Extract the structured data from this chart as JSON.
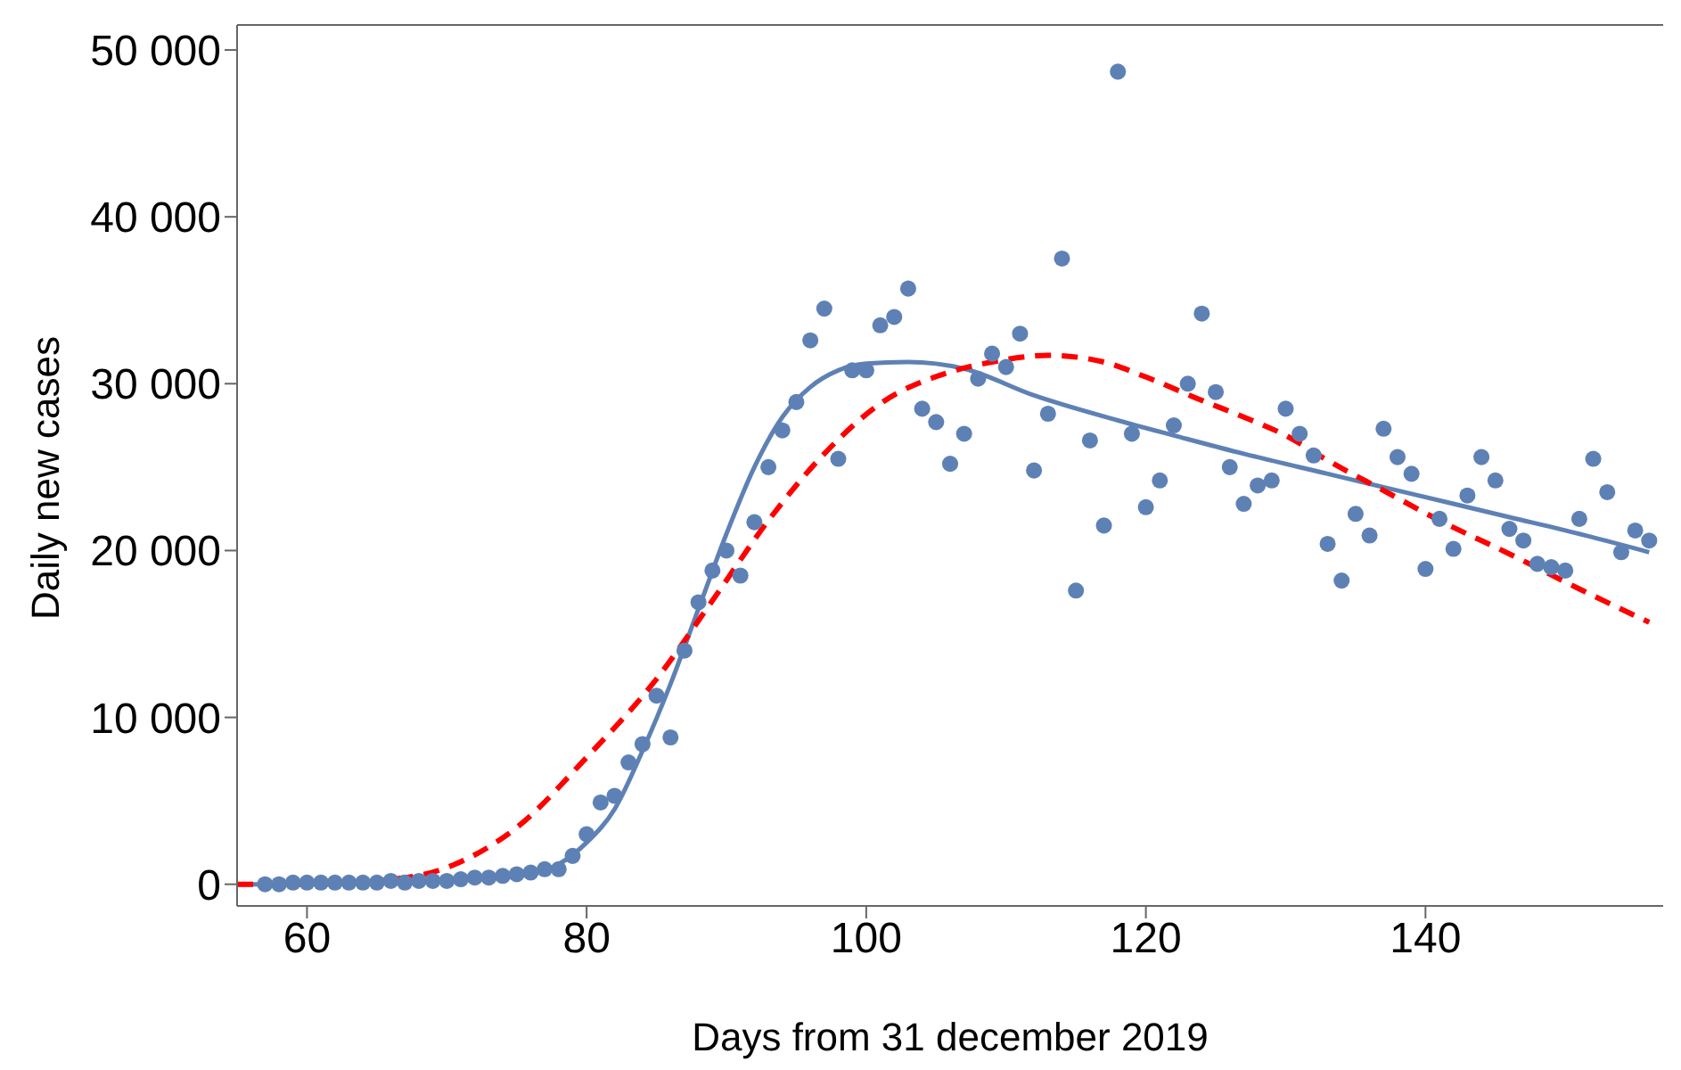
{
  "chart_data": {
    "type": "scatter",
    "xlabel": "Days from 31 december 2019",
    "ylabel": "Daily new cases",
    "xlim": [
      55,
      157
    ],
    "xticks": [
      60,
      80,
      100,
      120,
      140
    ],
    "ylim": [
      -1300,
      51500
    ],
    "yticks": [
      {
        "value": 0,
        "label": "0"
      },
      {
        "value": 10000,
        "label": "10 000"
      },
      {
        "value": 20000,
        "label": "20 000"
      },
      {
        "value": 30000,
        "label": "30 000"
      },
      {
        "value": 40000,
        "label": "40 000"
      },
      {
        "value": 50000,
        "label": "50 000"
      }
    ],
    "series": [
      {
        "marker": "circle",
        "color": "#5e81b5",
        "x": [
          57,
          58,
          59,
          60,
          61,
          62,
          63,
          64,
          65,
          66,
          67,
          68,
          69,
          70,
          71,
          72,
          73,
          74,
          75,
          76,
          77,
          78,
          79,
          80,
          81,
          82,
          83,
          84,
          85,
          86,
          87,
          88,
          89,
          90,
          91,
          92,
          93,
          94,
          95,
          96,
          97,
          98,
          99,
          100,
          101,
          102,
          103,
          104,
          105,
          106,
          107,
          108,
          109,
          110,
          111,
          112,
          113,
          114,
          115,
          116,
          117,
          118,
          119,
          120,
          121,
          122,
          123,
          124,
          125,
          126,
          127,
          128,
          129,
          130,
          131,
          132,
          133,
          134,
          135,
          136,
          137,
          138,
          139,
          140,
          141,
          142,
          143,
          144,
          145,
          146,
          147,
          148,
          149,
          150,
          151,
          152,
          153,
          154,
          155,
          156
        ],
        "values": [
          0,
          0,
          100,
          100,
          100,
          100,
          100,
          100,
          100,
          200,
          100,
          200,
          200,
          200,
          300,
          400,
          400,
          500,
          600,
          700,
          900,
          900,
          1700,
          3000,
          4900,
          5300,
          7300,
          8400,
          11300,
          8800,
          14000,
          16900,
          18800,
          20000,
          18500,
          21700,
          25000,
          27200,
          28900,
          32600,
          34500,
          25500,
          30800,
          30800,
          33500,
          34000,
          35700,
          28500,
          27700,
          25200,
          27000,
          30300,
          31800,
          31000,
          33000,
          24800,
          28200,
          37500,
          17600,
          26600,
          21500,
          48700,
          27000,
          22600,
          24200,
          27500,
          30000,
          34200,
          29500,
          25000,
          22800,
          23900,
          24200,
          28500,
          27000,
          25700,
          20400,
          18200,
          22200,
          20900,
          27300,
          25600,
          24600,
          18900,
          21900,
          20100,
          23300,
          25600,
          24200,
          21300,
          20600,
          19200,
          19000,
          18800,
          21900,
          25500,
          23500,
          19900,
          21200,
          20600
        ]
      },
      {
        "type": "line",
        "marker": "none",
        "line_style": "solid",
        "color": "#5e81b5",
        "x": [
          55,
          60,
          65,
          70,
          75,
          78,
          80,
          82,
          84,
          86,
          88,
          90,
          92,
          94,
          96,
          98,
          100,
          103,
          107,
          112,
          118,
          122,
          127,
          133,
          137,
          142,
          146,
          151,
          156
        ],
        "values": [
          0,
          0,
          100,
          200,
          500,
          1200,
          2500,
          4500,
          8000,
          12000,
          16500,
          21000,
          25000,
          28000,
          29800,
          30800,
          31200,
          31300,
          30900,
          29300,
          27800,
          26900,
          25800,
          24600,
          23800,
          22800,
          22000,
          21000,
          19900
        ]
      },
      {
        "type": "line",
        "marker": "none",
        "line_style": "dashed",
        "color": "#ff0000",
        "x": [
          55,
          60,
          65,
          70,
          75,
          80,
          85,
          89,
          93,
          97,
          101,
          106,
          109,
          113,
          117,
          120,
          124,
          127,
          130,
          133,
          137,
          141,
          146,
          151,
          156
        ],
        "values": [
          0,
          0,
          200,
          1000,
          3400,
          7600,
          12300,
          17000,
          21800,
          25800,
          28800,
          30700,
          31300,
          31700,
          31300,
          30400,
          29000,
          28000,
          26900,
          25400,
          23600,
          21800,
          19800,
          17700,
          15700
        ]
      }
    ]
  }
}
